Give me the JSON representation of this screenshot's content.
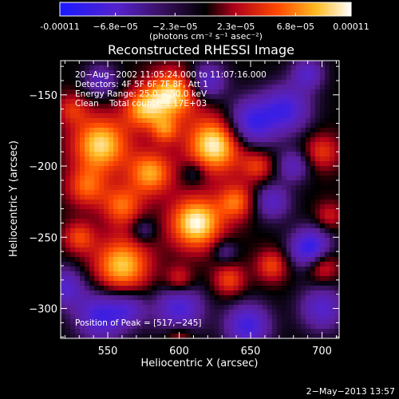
{
  "colorbar": {
    "tick_labels": [
      "-0.00011",
      "−6.8e−05",
      "−2.3e−05",
      "2.3e−05",
      "6.8e−05",
      "0.00011"
    ],
    "tick_values": [
      -0.00011,
      -6.8e-05,
      -2.3e-05,
      2.3e-05,
      6.8e-05,
      0.00011
    ],
    "range": [
      -0.00011,
      0.00011
    ],
    "unit_label": "(photons cm⁻² s⁻¹ asec⁻²)"
  },
  "chart_data": {
    "type": "heatmap",
    "title": "Reconstructed RHESSI Image",
    "xlabel": "Heliocentric X (arcsec)",
    "ylabel": "Heliocentric Y (arcsec)",
    "xlim": [
      517,
      712
    ],
    "ylim": [
      -321,
      -126
    ],
    "xticks": [
      550,
      600,
      650,
      700
    ],
    "yticks": [
      -150,
      -200,
      -250,
      -300
    ],
    "colormap": "rainbow-3 style: deep blue (negative) - purple - black (zero) - red - orange - yellow - white (positive)",
    "value_range": [
      -0.00011,
      0.00011
    ],
    "annotations": [
      "20−Aug−2002 11:05:24.000 to 11:07:16.000",
      "Detectors: 4F 5F 6F 7F 8F, Att 1",
      "Energy Range: 25.0 − 50.0 keV",
      "Clean    Total counts: 1.17E+03"
    ],
    "peak_annotation": "Position of Peak = [517,−245]",
    "peak_position": [
      517,
      -245
    ],
    "note": "Map structure approximated: bright clusters near (545,-185), (560,-270), (575,-160), (595,-150), (625,-185), (610,-240), (580,-200), (560,-220); negative clusters near (650,-170), (670,-160), (690,-255), (650,-310), (600,-300), (545,-305)"
  },
  "footer": {
    "date": "2−May−2013 13:57"
  }
}
